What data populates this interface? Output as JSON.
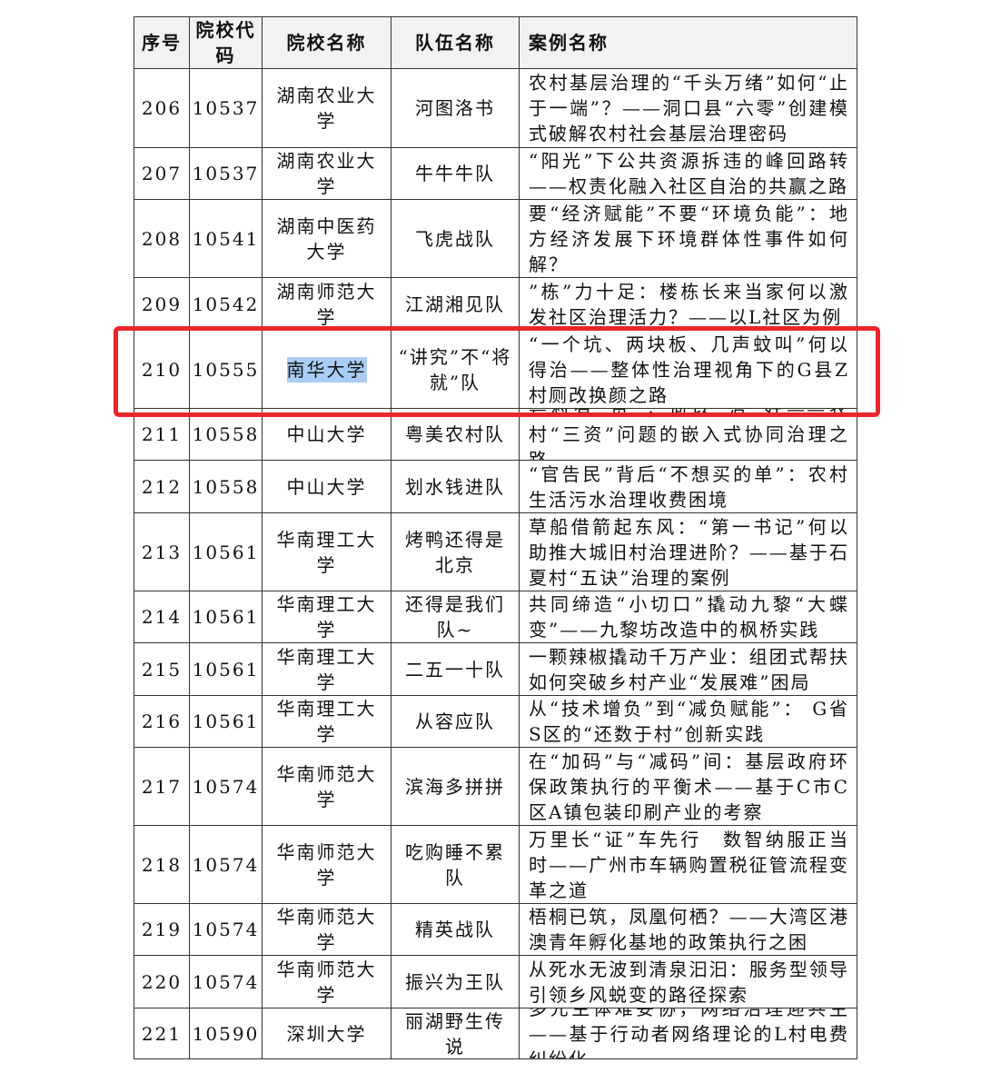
{
  "table": {
    "header": [
      "序号",
      "院校代码",
      "院校名称",
      "队伍名称",
      "案例名称"
    ],
    "rows": [
      [
        "206",
        "10537",
        "湖南农业大学",
        "河图洛书",
        "农村基层治理的“千头万绪”如何“止于一端”？——洞口县“六零”创建模式破解农村社会基层治理密码"
      ],
      [
        "207",
        "10537",
        "湖南农业大学",
        "牛牛牛队",
        "“阳光”下公共资源拆违的峰回路转——权责化融入社区自治的共赢之路"
      ],
      [
        "208",
        "10541",
        "湖南中医药大学",
        "飞虎战队",
        "要“经济赋能”不要“环境负能”：地方经济发展下环境群体性事件如何解？"
      ],
      [
        "209",
        "10542",
        "湖南师范大学",
        "江湖湘见队",
        "”栋”力十足：楼栋长来当家何以激发社区治理活力？——以L社区为例"
      ],
      [
        "210",
        "10555",
        "南华大学",
        "“讲究”不“将就”队",
        "“一个坑、两块板、几声蚊叫”何以得治——整体性治理视角下的G县Z村厕改换颜之路"
      ],
      [
        "211",
        "10558",
        "中山大学",
        "粤美农村队",
        "粤村有“资”，何以“治”好——农村“三资”问题的嵌入式协同治理之路"
      ],
      [
        "212",
        "10558",
        "中山大学",
        "划水钱进队",
        "“官告民”背后“不想买的单”：农村生活污水治理收费困境"
      ],
      [
        "213",
        "10561",
        "华南理工大学",
        "烤鸭还得是北京",
        "草船借箭起东风：“第一书记”何以助推大城旧村治理进阶？——基于石夏村“五诀”治理的案例"
      ],
      [
        "214",
        "10561",
        "华南理工大学",
        "还得是我们队~",
        "共同缔造“小切口”撬动九黎“大蝶变”——九黎坊改造中的枫桥实践"
      ],
      [
        "215",
        "10561",
        "华南理工大学",
        "二五一十队",
        "一颗辣椒撬动千万产业：组团式帮扶如何突破乡村产业“发展难”困局"
      ],
      [
        "216",
        "10561",
        "华南理工大学",
        "从容应队",
        "从“技术增负”到“减负赋能”： G省S区的“还数于村”创新实践"
      ],
      [
        "217",
        "10574",
        "华南师范大学",
        "滨海多拼拼",
        "在“加码”与“减码”间：基层政府环保政策执行的平衡术——基于C市C区A镇包装印刷产业的考察"
      ],
      [
        "218",
        "10574",
        "华南师范大学",
        "吃购睡不累队",
        "万里长“证”车先行　数智纳服正当时——广州市车辆购置税征管流程变革之道"
      ],
      [
        "219",
        "10574",
        "华南师范大学",
        "精英战队",
        "梧桐已筑，凤凰何栖？——大湾区港澳青年孵化基地的政策执行之困"
      ],
      [
        "220",
        "10574",
        "华南师范大学",
        "振兴为王队",
        "从死水无波到清泉汩汩：服务型领导引领乡风蜕变的路径探索"
      ],
      [
        "221",
        "10590",
        "深圳大学",
        "丽湖野生传说",
        "多元主体难妥协，网络治理迎共生——基于行动者网络理论的L村电费纠纷化"
      ]
    ]
  }
}
